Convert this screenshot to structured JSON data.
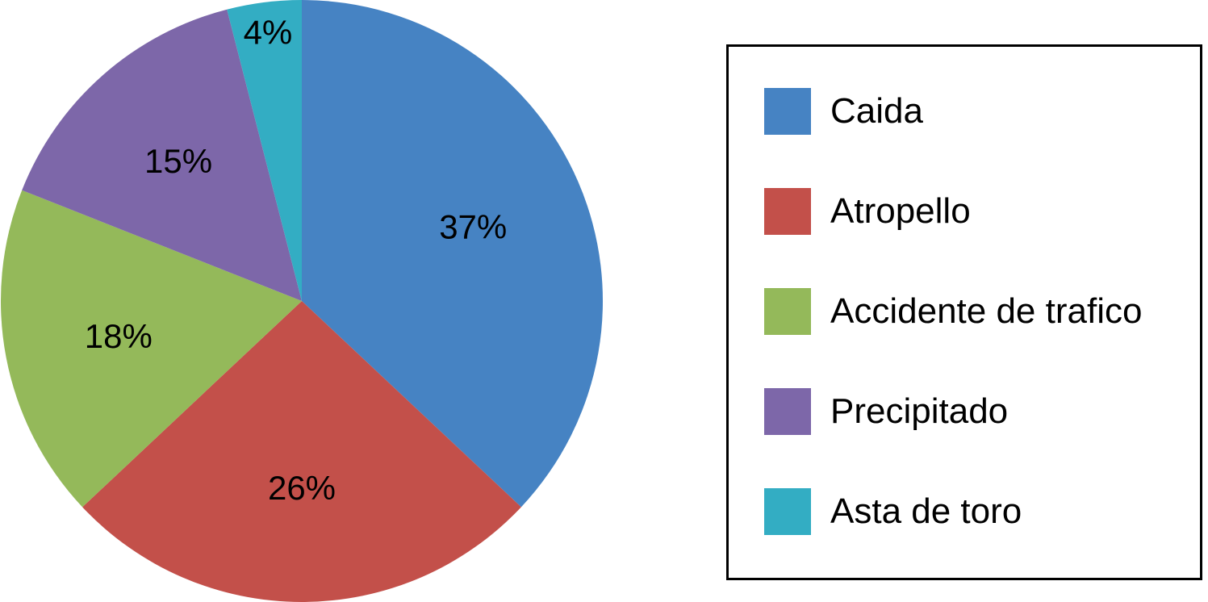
{
  "chart_data": {
    "type": "pie",
    "title": "",
    "slices": [
      {
        "label": "Caida",
        "value": 37,
        "display": "37%",
        "color": "#4683C3"
      },
      {
        "label": "Atropello",
        "value": 26,
        "display": "26%",
        "color": "#C3504A"
      },
      {
        "label": "Accidente de trafico",
        "value": 18,
        "display": "18%",
        "color": "#94B95A"
      },
      {
        "label": "Precipitado",
        "value": 15,
        "display": "15%",
        "color": "#7D67A9"
      },
      {
        "label": "Asta de toro",
        "value": 4,
        "display": "4%",
        "color": "#33ADC3"
      }
    ],
    "start_angle": "12 o'clock",
    "direction": "clockwise",
    "legend_position": "right"
  }
}
